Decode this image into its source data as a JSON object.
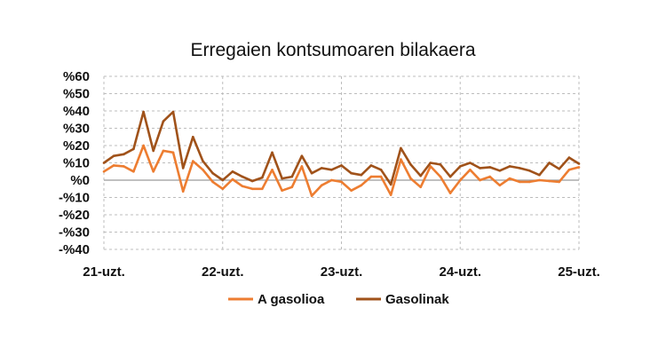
{
  "chart_data": {
    "type": "line",
    "title": "Erregaien kontsumoaren bilakaera",
    "xlabel": "",
    "ylabel": "",
    "x_tick_labels": [
      "21-uzt.",
      "22-uzt.",
      "23-uzt.",
      "24-uzt.",
      "25-uzt."
    ],
    "y_ticks": [
      -40,
      -30,
      -20,
      -10,
      0,
      10,
      20,
      30,
      40,
      50,
      60
    ],
    "y_tick_labels": [
      "-%40",
      "-%30",
      "-%20",
      "-%10",
      "%0",
      "%10",
      "%20",
      "%30",
      "%40",
      "%50",
      "%60"
    ],
    "ylim": [
      -40,
      60
    ],
    "grid": true,
    "legend_position": "bottom",
    "series": [
      {
        "name": "A gasolioa",
        "color": "#ED7D31",
        "values": [
          5,
          8.5,
          8,
          5,
          20,
          5,
          17,
          16,
          -6.5,
          11,
          6,
          -1,
          -5,
          0.5,
          -3.5,
          -5,
          -5,
          6,
          -6,
          -4,
          8,
          -9,
          -3,
          0,
          -1,
          -6,
          -3,
          2,
          2,
          -8.5,
          12,
          1,
          -4,
          8,
          2,
          -7.5,
          0,
          6,
          0,
          2,
          -3,
          1,
          -1,
          -1,
          0,
          -0.5,
          -1,
          6,
          7.5
        ]
      },
      {
        "name": "Gasolinak",
        "color": "#A0521A",
        "values": [
          10,
          14,
          15,
          18,
          39.5,
          17,
          34,
          39.5,
          7,
          25,
          11,
          4,
          0,
          5,
          2,
          -0.5,
          1.5,
          16,
          1,
          2,
          14,
          4,
          7,
          6,
          8.5,
          4,
          3,
          8.5,
          6,
          -2.5,
          18.5,
          9,
          2.5,
          10,
          9,
          2,
          8,
          10,
          7,
          7.5,
          5.5,
          8,
          7,
          5.5,
          3,
          10,
          6.5,
          13,
          9.5
        ]
      }
    ]
  }
}
